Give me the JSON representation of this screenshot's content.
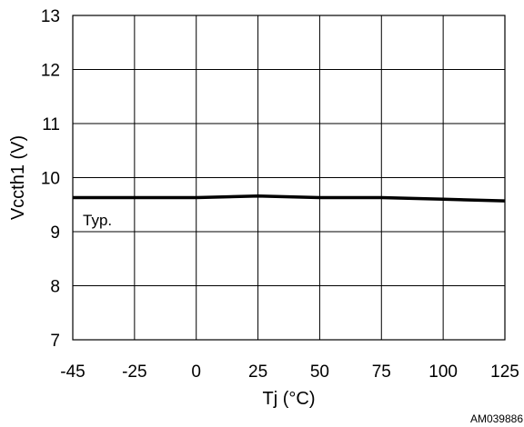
{
  "chart_data": {
    "type": "line",
    "title": "",
    "xlabel": "Tj (°C)",
    "ylabel": "Vccth1 (V)",
    "x_ticks": [
      "-45",
      "-25",
      "0",
      "25",
      "50",
      "75",
      "100",
      "125"
    ],
    "y_ticks": [
      "7",
      "8",
      "9",
      "10",
      "11",
      "12",
      "13"
    ],
    "xlim": [
      -45,
      125
    ],
    "ylim": [
      7,
      13
    ],
    "grid": true,
    "series": [
      {
        "name": "Typ.",
        "x": [
          -45,
          -25,
          0,
          25,
          50,
          75,
          100,
          125
        ],
        "y": [
          9.63,
          9.63,
          9.63,
          9.66,
          9.63,
          9.63,
          9.6,
          9.57
        ]
      }
    ],
    "annotations": [
      "Typ."
    ],
    "doc_id": "AM039886"
  }
}
